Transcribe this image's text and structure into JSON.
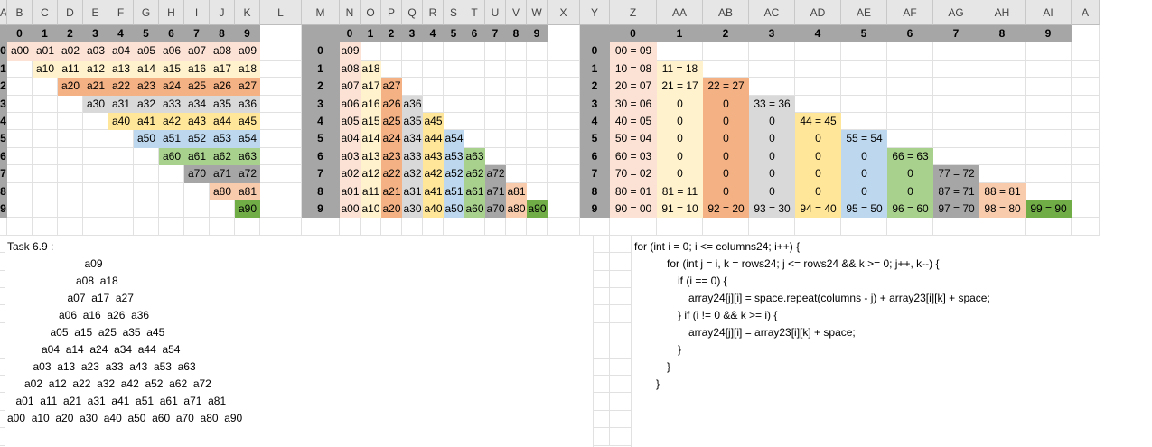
{
  "colors": {
    "header_gray": "#a6a6a6",
    "pink": "#fbe2d5",
    "cream": "#fff2cc",
    "orange": "#f4b183",
    "gray": "#d9d9d9",
    "yellow": "#ffe699",
    "blue": "#bdd7ee",
    "green": "#a9d18e",
    "dark_gray": "#a6a6a6",
    "salmon": "#f8cbad",
    "bright_green": "#70ad47"
  },
  "column_letters": [
    "A",
    "B",
    "C",
    "D",
    "E",
    "F",
    "G",
    "H",
    "I",
    "J",
    "K",
    "L",
    "M",
    "N",
    "O",
    "P",
    "Q",
    "R",
    "S",
    "T",
    "U",
    "V",
    "W",
    "X",
    "Y",
    "Z",
    "AA",
    "AB",
    "AC",
    "AD",
    "AE",
    "AF",
    "AG",
    "AH",
    "AI",
    "A"
  ],
  "table1": {
    "col_headers": [
      "0",
      "1",
      "2",
      "3",
      "4",
      "5",
      "6",
      "7",
      "8",
      "9"
    ],
    "row_headers": [
      "0",
      "1",
      "2",
      "3",
      "4",
      "5",
      "6",
      "7",
      "8",
      "9"
    ],
    "rows": [
      [
        "a00",
        "a01",
        "a02",
        "a03",
        "a04",
        "a05",
        "a06",
        "a07",
        "a08",
        "a09"
      ],
      [
        "a10",
        "a11",
        "a12",
        "a13",
        "a14",
        "a15",
        "a16",
        "a17",
        "a18"
      ],
      [
        "a20",
        "a21",
        "a22",
        "a23",
        "a24",
        "a25",
        "a26",
        "a27"
      ],
      [
        "a30",
        "a31",
        "a32",
        "a33",
        "a34",
        "a35",
        "a36"
      ],
      [
        "a40",
        "a41",
        "a42",
        "a43",
        "a44",
        "a45"
      ],
      [
        "a50",
        "a51",
        "a52",
        "a53",
        "a54"
      ],
      [
        "a60",
        "a61",
        "a62",
        "a63"
      ],
      [
        "a70",
        "a71",
        "a72"
      ],
      [
        "a80",
        "a81"
      ],
      [
        "a90"
      ]
    ]
  },
  "table2": {
    "col_headers": [
      "0",
      "1",
      "2",
      "3",
      "4",
      "5",
      "6",
      "7",
      "8",
      "9"
    ],
    "row_headers": [
      "0",
      "1",
      "2",
      "3",
      "4",
      "5",
      "6",
      "7",
      "8",
      "9"
    ],
    "rows": [
      [
        "a09"
      ],
      [
        "a08",
        "a18"
      ],
      [
        "a07",
        "a17",
        "a27"
      ],
      [
        "a06",
        "a16",
        "a26",
        "a36"
      ],
      [
        "a05",
        "a15",
        "a25",
        "a35",
        "a45"
      ],
      [
        "a04",
        "a14",
        "a24",
        "a34",
        "a44",
        "a54"
      ],
      [
        "a03",
        "a13",
        "a23",
        "a33",
        "a43",
        "a53",
        "a63"
      ],
      [
        "a02",
        "a12",
        "a22",
        "a32",
        "a42",
        "a52",
        "a62",
        "a72"
      ],
      [
        "a01",
        "a11",
        "a21",
        "a31",
        "a41",
        "a51",
        "a61",
        "a71",
        "a81"
      ],
      [
        "a00",
        "a10",
        "a20",
        "a30",
        "a40",
        "a50",
        "a60",
        "a70",
        "a80",
        "a90"
      ]
    ]
  },
  "table3": {
    "col_headers": [
      "0",
      "1",
      "2",
      "3",
      "4",
      "5",
      "6",
      "7",
      "8",
      "9"
    ],
    "row_headers": [
      "0",
      "1",
      "2",
      "3",
      "4",
      "5",
      "6",
      "7",
      "8",
      "9"
    ],
    "rows": [
      [
        "00 = 09"
      ],
      [
        "10 = 08",
        "11 = 18"
      ],
      [
        "20 = 07",
        "21 = 17",
        "22 = 27"
      ],
      [
        "30 = 06",
        "0",
        "0",
        "33 = 36"
      ],
      [
        "40 = 05",
        "0",
        "0",
        "0",
        "44 = 45"
      ],
      [
        "50 = 04",
        "0",
        "0",
        "0",
        "0",
        "55 = 54"
      ],
      [
        "60 = 03",
        "0",
        "0",
        "0",
        "0",
        "0",
        "66 = 63"
      ],
      [
        "70 = 02",
        "0",
        "0",
        "0",
        "0",
        "0",
        "0",
        "77 = 72"
      ],
      [
        "80 = 01",
        "81 = 11",
        "0",
        "0",
        "0",
        "0",
        "0",
        "87 = 71",
        "88 = 81"
      ],
      [
        "90 = 00",
        "91 = 10",
        "92 = 20",
        "93 = 30",
        "94 = 40",
        "95 = 50",
        "96 = 60",
        "97 = 70",
        "98 = 80",
        "99 = 90"
      ]
    ]
  },
  "task": {
    "title": "Task 6.9 :",
    "lines": [
      "a09",
      "a08  a18",
      "a07  a17  a27",
      "a06  a16  a26  a36",
      "a05  a15  a25  a35  a45",
      "a04  a14  a24  a34  a44  a54",
      "a03  a13  a23  a33  a43  a53  a63",
      "a02  a12  a22  a32  a42  a52  a62  a72",
      "a01  a11  a21  a31  a41  a51  a61  a71  a81",
      "a00  a10  a20  a30  a40  a50  a60  a70  a80  a90"
    ]
  },
  "code": {
    "lines": [
      "for (int i = 0; i <= columns24; i++) {",
      "for (int j = i, k = rows24; j <= rows24 && k >= 0; j++, k--) {",
      "if (i == 0) {",
      "array24[j][i] = space.repeat(columns - j) + array23[i][k] + space;",
      "} if (i != 0 && k >= i) {",
      "array24[j][i] = array23[i][k] + space;",
      "}",
      "}",
      "}"
    ]
  }
}
